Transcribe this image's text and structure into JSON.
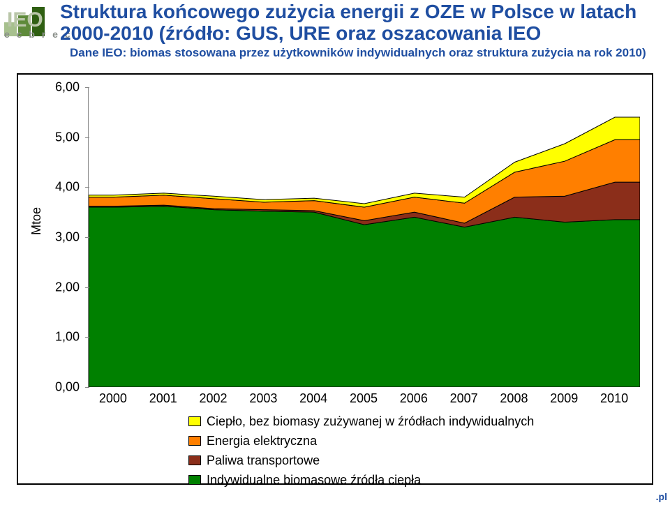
{
  "title": "Struktura końcowego zużycia energii z OZE  w Polsce w latach 2000-2010 (źródło: GUS, URE oraz oszacowania IEO",
  "subtitle": "Dane IEO: biomas stosowana przez użytkowników indywidualnych oraz struktura zużycia na rok 2010)",
  "ecbrec": "e c  b r e c",
  "footer": ".pl",
  "chart": {
    "type": "area",
    "ylabel": "Mtoe",
    "ylim": [
      0,
      6.0
    ],
    "yticks": [
      0.0,
      1.0,
      2.0,
      3.0,
      4.0,
      5.0,
      6.0
    ],
    "ytick_labels": [
      "0,00",
      "1,00",
      "2,00",
      "3,00",
      "4,00",
      "5,00",
      "6,00"
    ],
    "categories": [
      "2000",
      "2001",
      "2002",
      "2003",
      "2004",
      "2005",
      "2006",
      "2007",
      "2008",
      "2009",
      "2010"
    ],
    "series": [
      {
        "name": "Indywidualne biomasowe źródła ciepła",
        "color": "#008000",
        "values": [
          3.6,
          3.62,
          3.55,
          3.52,
          3.5,
          3.25,
          3.4,
          3.2,
          3.4,
          3.3,
          3.35
        ]
      },
      {
        "name": "Paliwa transportowe",
        "color": "#8b2e1a",
        "values": [
          0.02,
          0.02,
          0.02,
          0.03,
          0.03,
          0.08,
          0.1,
          0.08,
          0.4,
          0.52,
          0.75
        ]
      },
      {
        "name": "Energia elektryczna",
        "color": "#ff7f00",
        "values": [
          0.18,
          0.2,
          0.2,
          0.15,
          0.2,
          0.27,
          0.3,
          0.4,
          0.5,
          0.7,
          0.85
        ]
      },
      {
        "name": "Ciepło, bez biomasy zużywanej w źródłach indywidualnych",
        "color": "#ffff00",
        "values": [
          0.04,
          0.04,
          0.05,
          0.05,
          0.05,
          0.07,
          0.08,
          0.12,
          0.2,
          0.35,
          0.45
        ]
      }
    ],
    "legend_order": [
      "Ciepło, bez biomasy zużywanej w źródłach indywidualnych",
      "Energia elektryczna",
      "Paliwa transportowe",
      "Indywidualne biomasowe źródła ciepła"
    ],
    "background_color": "#ffffff",
    "axis_color": "#888888",
    "stroke_color": "#000000",
    "font_size": 18,
    "title_color": "#1f4ea1"
  },
  "logo": {
    "bar_colors": [
      "#a7c08e",
      "#5e8a3a",
      "#2f5f12"
    ],
    "text": "IEO",
    "text_color": "#b9c6a8"
  }
}
